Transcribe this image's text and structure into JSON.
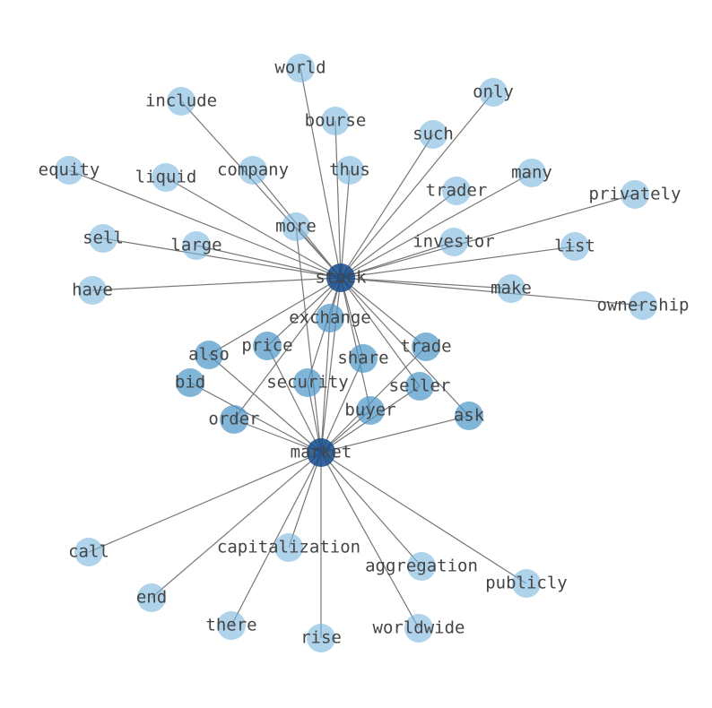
{
  "nodes": [
    {
      "label": "stock"
    },
    {
      "label": "market"
    },
    {
      "label": "world"
    },
    {
      "label": "include"
    },
    {
      "label": "bourse"
    },
    {
      "label": "only"
    },
    {
      "label": "such"
    },
    {
      "label": "thus"
    },
    {
      "label": "company"
    },
    {
      "label": "equity"
    },
    {
      "label": "liquid"
    },
    {
      "label": "many"
    },
    {
      "label": "trader"
    },
    {
      "label": "privately"
    },
    {
      "label": "more"
    },
    {
      "label": "sell"
    },
    {
      "label": "large"
    },
    {
      "label": "investor"
    },
    {
      "label": "list"
    },
    {
      "label": "have"
    },
    {
      "label": "make"
    },
    {
      "label": "ownership"
    },
    {
      "label": "exchange"
    },
    {
      "label": "also"
    },
    {
      "label": "price"
    },
    {
      "label": "trade"
    },
    {
      "label": "share"
    },
    {
      "label": "security"
    },
    {
      "label": "seller"
    },
    {
      "label": "bid"
    },
    {
      "label": "buyer"
    },
    {
      "label": "ask"
    },
    {
      "label": "order"
    },
    {
      "label": "call"
    },
    {
      "label": "end"
    },
    {
      "label": "there"
    },
    {
      "label": "capitalization"
    },
    {
      "label": "rise"
    },
    {
      "label": "worldwide"
    },
    {
      "label": "aggregation"
    },
    {
      "label": "publicly"
    }
  ]
}
